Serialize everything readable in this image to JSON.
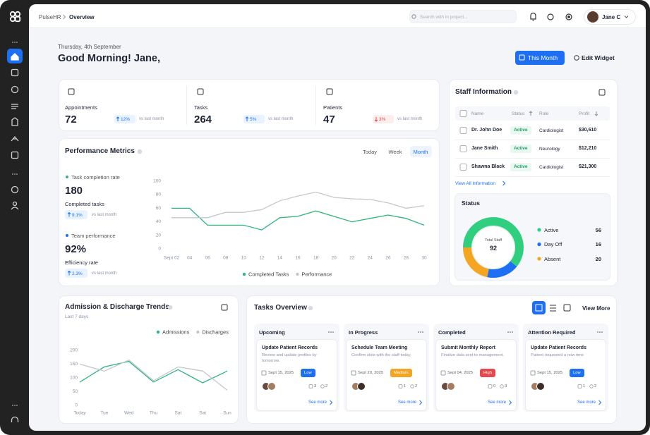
{
  "topbar": {
    "breadcrumb": [
      "PulseHR",
      "Overview"
    ],
    "search_placeholder": "Search with in project...",
    "user": "Jane C"
  },
  "header": {
    "date": "Thursday, 4th September",
    "greeting": "Good Morning! Jane,",
    "buttons": [
      "This Month",
      "Edit Widget"
    ]
  },
  "stats": [
    {
      "label": "Appointments",
      "value": 72,
      "change": "12%",
      "direction": "up",
      "note": "vs last month"
    },
    {
      "label": "Tasks",
      "value": 264,
      "change": "5%",
      "direction": "up",
      "note": "vs last month"
    },
    {
      "label": "Patients",
      "value": 47,
      "change": "3%",
      "direction": "down",
      "note": "vs last month"
    }
  ],
  "performance": {
    "tabs": [
      "Today",
      "Week",
      "Month"
    ],
    "active_tab": 2,
    "kpis": [
      {
        "label": "Task completion rate",
        "value": 180,
        "sub": "Completed tasks",
        "change": "9.1%",
        "direction": "up",
        "note": "vs last month",
        "color": "#2fb67c"
      },
      {
        "label": "Team performance",
        "value": "92%",
        "sub": "Efficiency rate",
        "change": "2.3%",
        "direction": "up",
        "note": "vs last month",
        "color": "#1e6ff1"
      }
    ]
  },
  "staff": {
    "title": "Staff Information",
    "columns": [
      "Name",
      "Status",
      "Role",
      "Profit"
    ],
    "rows": [
      [
        "Dr. John Doe",
        "Active",
        "Cardiologist",
        "$30,610"
      ],
      [
        "Jane Smith",
        "Active",
        "Neurology",
        "$12,210"
      ],
      [
        "Shawna Black",
        "Active",
        "Cardiologist",
        "$21,300"
      ]
    ],
    "link": "View All Information"
  },
  "tasks": {
    "title": "Tasks Overview",
    "view_more": "View More",
    "columns": [
      {
        "name": "Upcoming",
        "card": {
          "title": "Update Patient Records",
          "desc": "Review and update profiles by tomorrow.",
          "date": "Sept 15, 2025",
          "priority": "Low",
          "priority_color": "#1e6ff1",
          "comments": 3,
          "attachments": 2,
          "link": "See more"
        }
      },
      {
        "name": "In Progress",
        "card": {
          "title": "Schedule Team Meeting",
          "desc": "Confirm slots with the staff today.",
          "date": "Sept 20, 2025",
          "priority": "Medium",
          "priority_color": "#f5a524",
          "comments": 1,
          "attachments": 2,
          "link": "See more"
        }
      },
      {
        "name": "Completed",
        "card": {
          "title": "Submit Monthly Report",
          "desc": "Finalize data sent to management.",
          "date": "Sept 04, 2025",
          "priority": "High",
          "priority_color": "#e5484d",
          "comments": 0,
          "attachments": 3,
          "link": "See more"
        }
      },
      {
        "name": "Attention Required",
        "card": {
          "title": "Update Patient Records",
          "desc": "Patient requested a now time",
          "date": "Sept 15, 2025",
          "priority": "Low",
          "priority_color": "#1e6ff1",
          "comments": 1,
          "attachments": 2,
          "link": "See more"
        }
      }
    ]
  },
  "chart_data": [
    {
      "type": "line",
      "title": "Performance Metrics",
      "categories": [
        "Sept 02",
        "04",
        "06",
        "08",
        "10",
        "12",
        "14",
        "16",
        "18",
        "20",
        "22",
        "24",
        "26",
        "28",
        "30"
      ],
      "series": [
        {
          "name": "Completed Tasks",
          "color": "#2fb67c",
          "values": [
            60,
            60,
            35,
            35,
            35,
            28,
            46,
            48,
            56,
            48,
            40,
            45,
            50,
            45,
            35
          ]
        },
        {
          "name": "Performance",
          "color": "#c4c7cc",
          "values": [
            46,
            46,
            46,
            54,
            54,
            58,
            71,
            78,
            84,
            76,
            74,
            73,
            68,
            60,
            64
          ]
        }
      ],
      "ylim": [
        0,
        100
      ],
      "yticks": [
        0,
        20,
        40,
        60,
        80,
        100
      ],
      "grid": false
    },
    {
      "type": "line",
      "title": "Admission & Discharge Trends",
      "subtitle": "Last 7 days",
      "categories": [
        "Today",
        "Tue",
        "Wed",
        "Thu",
        "Sat",
        "Sat",
        "Sun"
      ],
      "series": [
        {
          "name": "Admissions",
          "color": "#2fb67c",
          "values": [
            85,
            140,
            160,
            85,
            130,
            82,
            125
          ]
        },
        {
          "name": "Discharges",
          "color": "#c4c7cc",
          "values": [
            150,
            125,
            165,
            90,
            140,
            125,
            55
          ]
        }
      ],
      "ylim": [
        0,
        200
      ],
      "yticks": [
        0,
        50,
        100,
        150,
        200
      ],
      "grid": false
    },
    {
      "type": "pie",
      "title": "Status",
      "center_label": "Total Staff",
      "center_value": 92,
      "categories": [
        "Active",
        "Day Off",
        "Absent"
      ],
      "values": [
        56,
        16,
        20
      ],
      "colors": [
        "#2fcf7f",
        "#1e6ff1",
        "#f5a524"
      ]
    }
  ]
}
